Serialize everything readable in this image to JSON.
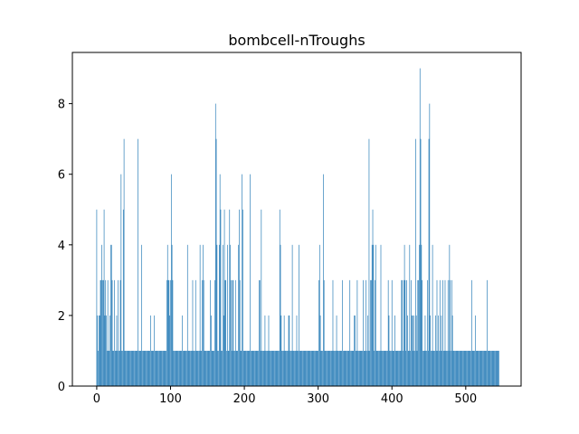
{
  "chart_data": {
    "type": "bar",
    "title": "bombcell-nTroughs",
    "xlabel": "",
    "ylabel": "",
    "xlim": [
      -33,
      575
    ],
    "ylim": [
      0,
      9.45
    ],
    "x_ticks": [
      0,
      100,
      200,
      300,
      400,
      500
    ],
    "y_ticks": [
      0,
      2,
      4,
      6,
      8
    ],
    "grid": false,
    "legend": "none",
    "bar_color": "#1f77b4",
    "bar_width": 0.8,
    "x_start": 0,
    "values": [
      5,
      2,
      1,
      2,
      2,
      3,
      3,
      4,
      3,
      3,
      5,
      2,
      3,
      2,
      1,
      3,
      1,
      1,
      2,
      4,
      4,
      3,
      1,
      1,
      3,
      1,
      1,
      2,
      1,
      3,
      1,
      1,
      3,
      6,
      1,
      1,
      5,
      7,
      1,
      1,
      1,
      1,
      1,
      1,
      1,
      1,
      1,
      1,
      1,
      1,
      1,
      1,
      1,
      1,
      1,
      1,
      7,
      1,
      1,
      1,
      1,
      4,
      1,
      1,
      1,
      1,
      1,
      1,
      1,
      1,
      1,
      1,
      1,
      2,
      1,
      1,
      1,
      1,
      2,
      1,
      1,
      1,
      1,
      1,
      1,
      1,
      1,
      1,
      1,
      1,
      1,
      1,
      1,
      1,
      1,
      3,
      4,
      3,
      3,
      2,
      3,
      6,
      4,
      3,
      1,
      1,
      1,
      1,
      1,
      1,
      1,
      1,
      1,
      1,
      1,
      1,
      2,
      1,
      1,
      1,
      1,
      1,
      1,
      4,
      1,
      1,
      1,
      1,
      1,
      1,
      3,
      1,
      1,
      1,
      3,
      1,
      1,
      1,
      1,
      1,
      4,
      1,
      1,
      3,
      4,
      3,
      1,
      1,
      1,
      1,
      1,
      1,
      1,
      1,
      3,
      2,
      1,
      1,
      1,
      1,
      3,
      8,
      7,
      4,
      1,
      1,
      4,
      6,
      5,
      1,
      1,
      4,
      2,
      5,
      3,
      3,
      1,
      4,
      1,
      1,
      5,
      4,
      3,
      1,
      3,
      3,
      1,
      1,
      3,
      1,
      1,
      1,
      4,
      5,
      3,
      1,
      1,
      6,
      5,
      1,
      1,
      1,
      1,
      1,
      1,
      1,
      1,
      1,
      6,
      1,
      1,
      1,
      1,
      1,
      1,
      1,
      1,
      1,
      1,
      1,
      3,
      3,
      1,
      5,
      1,
      1,
      1,
      1,
      2,
      1,
      1,
      1,
      1,
      2,
      1,
      1,
      1,
      1,
      1,
      1,
      1,
      1,
      1,
      1,
      1,
      1,
      1,
      1,
      5,
      4,
      2,
      1,
      1,
      1,
      2,
      1,
      1,
      1,
      1,
      1,
      2,
      2,
      1,
      1,
      1,
      4,
      1,
      1,
      1,
      1,
      1,
      2,
      1,
      1,
      4,
      1,
      1,
      1,
      1,
      1,
      1,
      1,
      1,
      1,
      1,
      1,
      1,
      1,
      1,
      1,
      1,
      1,
      1,
      1,
      1,
      1,
      1,
      1,
      1,
      1,
      1,
      3,
      4,
      2,
      1,
      1,
      1,
      6,
      3,
      1,
      1,
      1,
      1,
      1,
      1,
      1,
      1,
      1,
      1,
      1,
      3,
      1,
      1,
      1,
      1,
      2,
      1,
      1,
      1,
      1,
      1,
      1,
      1,
      3,
      1,
      1,
      1,
      1,
      1,
      1,
      1,
      1,
      1,
      3,
      1,
      1,
      1,
      1,
      1,
      2,
      2,
      1,
      1,
      3,
      1,
      1,
      1,
      1,
      1,
      1,
      1,
      3,
      1,
      1,
      1,
      3,
      1,
      2,
      1,
      7,
      1,
      3,
      3,
      4,
      5,
      4,
      1,
      3,
      4,
      1,
      1,
      1,
      1,
      1,
      1,
      4,
      1,
      1,
      1,
      1,
      1,
      1,
      1,
      1,
      1,
      3,
      2,
      1,
      1,
      1,
      3,
      1,
      1,
      1,
      2,
      1,
      1,
      1,
      1,
      1,
      1,
      1,
      1,
      3,
      3,
      1,
      3,
      4,
      3,
      1,
      3,
      2,
      1,
      1,
      4,
      1,
      3,
      2,
      2,
      1,
      2,
      1,
      7,
      2,
      1,
      3,
      3,
      4,
      9,
      7,
      4,
      3,
      1,
      1,
      1,
      2,
      1,
      1,
      3,
      1,
      7,
      8,
      2,
      1,
      1,
      4,
      1,
      1,
      1,
      2,
      1,
      3,
      1,
      2,
      1,
      3,
      1,
      2,
      1,
      3,
      1,
      1,
      3,
      1,
      1,
      1,
      3,
      1,
      4,
      3,
      1,
      3,
      2,
      1,
      1,
      1,
      1,
      1,
      1,
      1,
      1,
      1,
      1,
      1,
      1,
      1,
      1,
      1,
      1,
      1,
      1,
      1,
      1,
      1,
      1,
      1,
      1,
      1,
      3,
      1,
      1,
      1,
      1,
      2,
      1,
      1,
      1,
      1,
      1,
      1,
      1,
      1,
      1,
      1,
      1,
      1,
      1,
      1,
      1,
      3,
      1,
      1,
      1,
      1,
      1,
      1,
      1,
      1,
      1,
      1,
      1,
      1,
      1,
      1,
      1,
      1
    ]
  }
}
